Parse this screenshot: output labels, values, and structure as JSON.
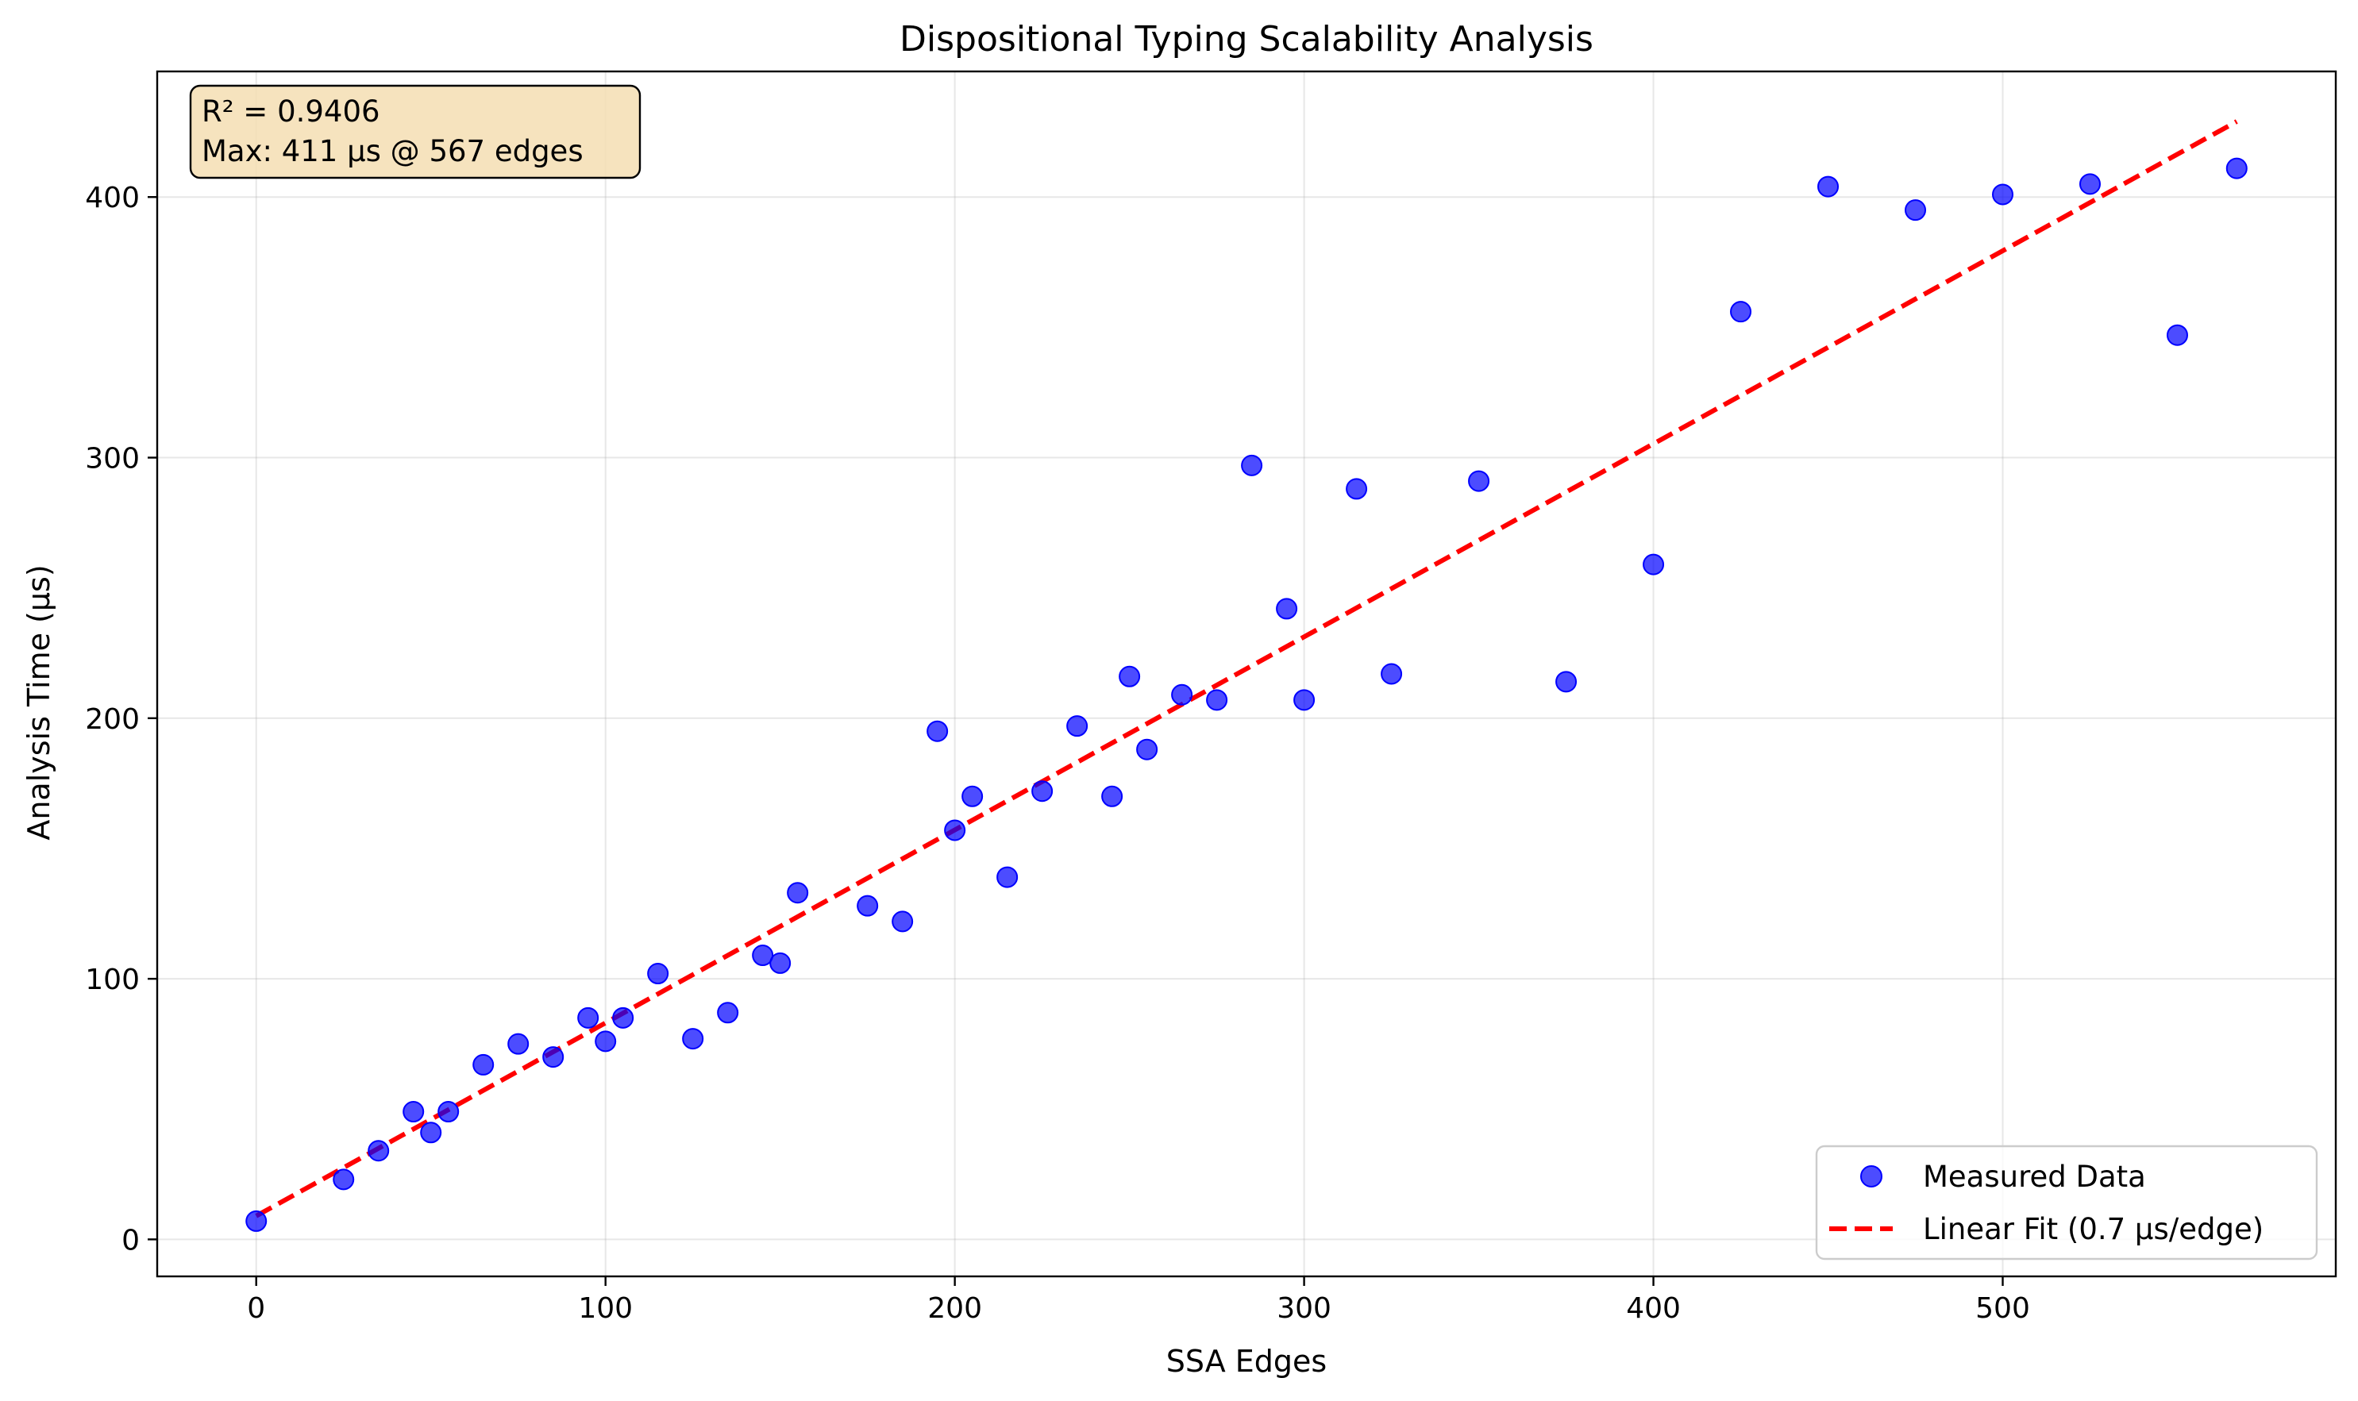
{
  "chart_data": {
    "type": "scatter",
    "title": "Dispositional Typing Scalability Analysis",
    "xlabel": "SSA Edges",
    "ylabel": "Analysis Time (μs)",
    "xlim": [
      -28.35,
      595.35
    ],
    "ylim": [
      -14.2,
      448.2
    ],
    "xticks": [
      0,
      100,
      200,
      300,
      400,
      500
    ],
    "yticks": [
      0,
      100,
      200,
      300,
      400
    ],
    "grid": true,
    "legend_position": "lower-right",
    "annotation": {
      "line1": "R² = 0.9406",
      "line2": "Max: 411 μs @ 567 edges"
    },
    "series": [
      {
        "name": "Measured Data",
        "kind": "scatter",
        "color": "#0000ff",
        "points": [
          [
            0,
            7
          ],
          [
            25,
            23
          ],
          [
            35,
            34
          ],
          [
            45,
            49
          ],
          [
            50,
            41
          ],
          [
            55,
            49
          ],
          [
            65,
            67
          ],
          [
            75,
            75
          ],
          [
            85,
            70
          ],
          [
            95,
            85
          ],
          [
            100,
            76
          ],
          [
            105,
            85
          ],
          [
            115,
            102
          ],
          [
            125,
            77
          ],
          [
            135,
            87
          ],
          [
            145,
            109
          ],
          [
            150,
            106
          ],
          [
            155,
            133
          ],
          [
            175,
            128
          ],
          [
            185,
            122
          ],
          [
            195,
            195
          ],
          [
            200,
            157
          ],
          [
            205,
            170
          ],
          [
            215,
            139
          ],
          [
            225,
            172
          ],
          [
            235,
            197
          ],
          [
            245,
            170
          ],
          [
            250,
            216
          ],
          [
            255,
            188
          ],
          [
            265,
            209
          ],
          [
            275,
            207
          ],
          [
            285,
            297
          ],
          [
            295,
            242
          ],
          [
            300,
            207
          ],
          [
            315,
            288
          ],
          [
            325,
            217
          ],
          [
            350,
            291
          ],
          [
            375,
            214
          ],
          [
            400,
            259
          ],
          [
            425,
            356
          ],
          [
            450,
            404
          ],
          [
            475,
            395
          ],
          [
            500,
            401
          ],
          [
            525,
            405
          ],
          [
            550,
            347
          ],
          [
            567,
            411
          ]
        ]
      },
      {
        "name": "Linear Fit (0.7 μs/edge)",
        "kind": "line",
        "style": "dashed",
        "color": "#ff0000",
        "points": [
          [
            0,
            9
          ],
          [
            567,
            429
          ]
        ]
      }
    ]
  }
}
